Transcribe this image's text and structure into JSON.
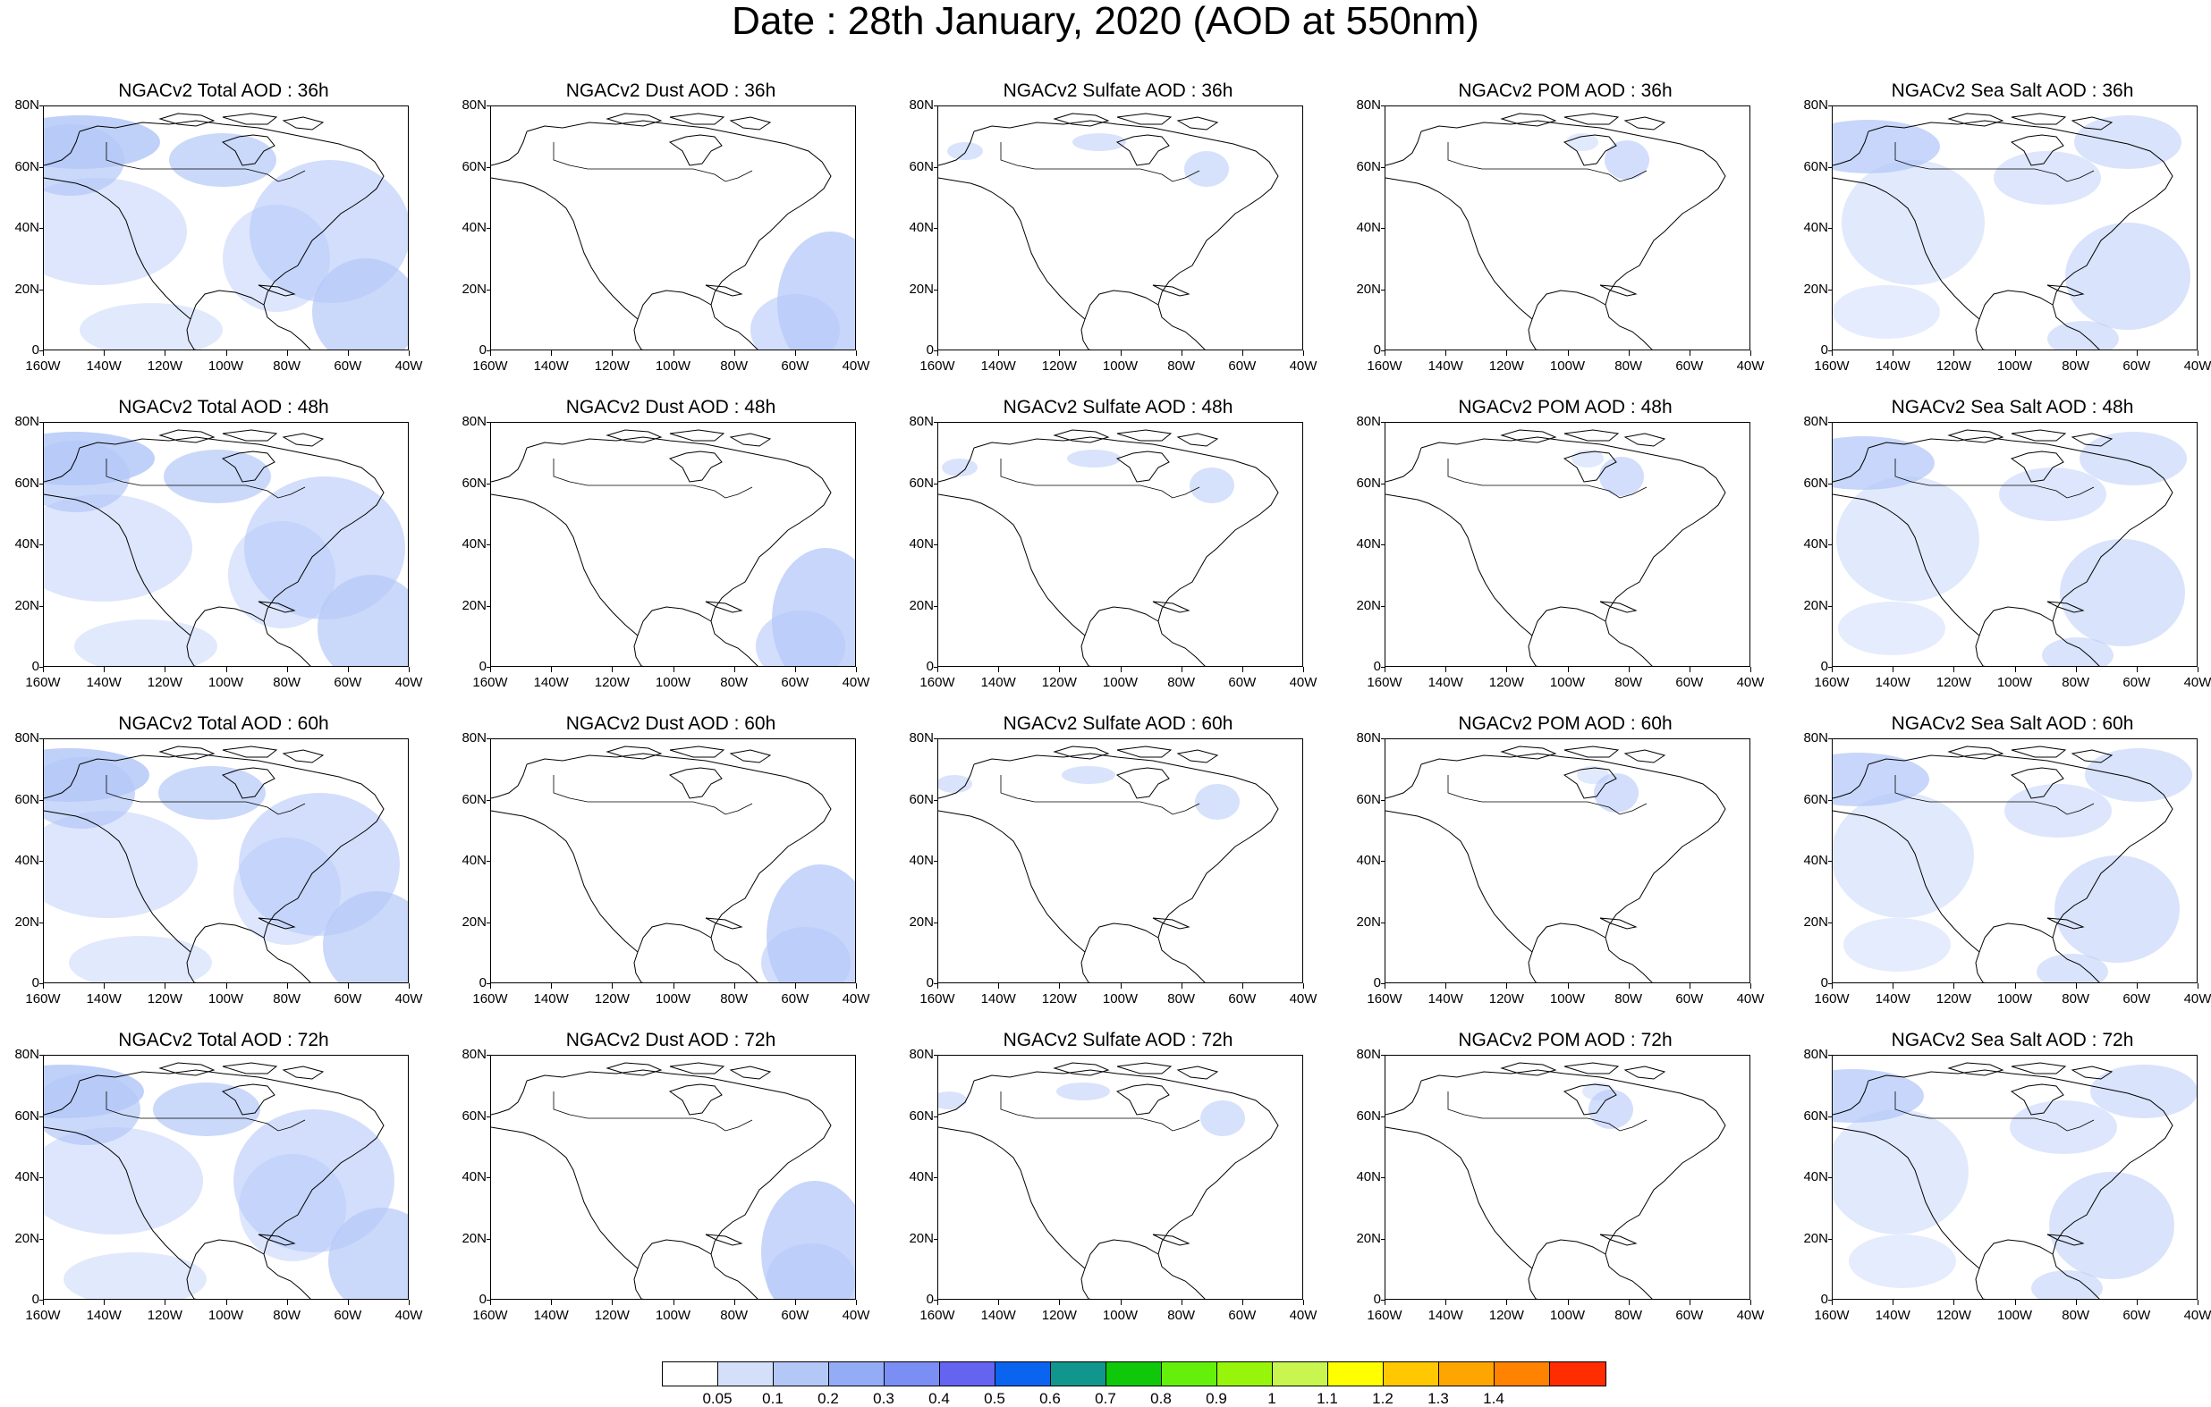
{
  "title": "Date : 28th January, 2020 (AOD at 550nm)",
  "lat_labels": [
    "80N",
    "60N",
    "40N",
    "20N",
    "0"
  ],
  "lon_labels": [
    "160W",
    "140W",
    "120W",
    "100W",
    "80W",
    "60W",
    "40W"
  ],
  "rows": [
    {
      "forecast_hour": "36h",
      "titles": [
        "NGACv2 Total AOD : 36h",
        "NGACv2 Dust AOD : 36h",
        "NGACv2 Sulfate AOD : 36h",
        "NGACv2 POM AOD : 36h",
        "NGACv2 Sea Salt AOD : 36h"
      ]
    },
    {
      "forecast_hour": "48h",
      "titles": [
        "NGACv2 Total AOD : 48h",
        "NGACv2 Dust AOD : 48h",
        "NGACv2 Sulfate AOD : 48h",
        "NGACv2 POM AOD : 48h",
        "NGACv2 Sea Salt AOD : 48h"
      ]
    },
    {
      "forecast_hour": "60h",
      "titles": [
        "NGACv2 Total AOD : 60h",
        "NGACv2 Dust AOD : 60h",
        "NGACv2 Sulfate AOD : 60h",
        "NGACv2 POM AOD : 60h",
        "NGACv2 Sea Salt AOD : 60h"
      ]
    },
    {
      "forecast_hour": "72h",
      "titles": [
        "NGACv2 Total AOD : 72h",
        "NGACv2 Dust AOD : 72h",
        "NGACv2 Sulfate AOD : 72h",
        "NGACv2 POM AOD : 72h",
        "NGACv2 Sea Salt  AOD : 72h"
      ]
    }
  ],
  "colorbar": {
    "colors": [
      "#ffffff",
      "#d4e0fa",
      "#b4c8f8",
      "#94acf6",
      "#7a8ef4",
      "#6464f0",
      "#0a64f0",
      "#10968c",
      "#10c80a",
      "#64f00a",
      "#96f50a",
      "#c8f550",
      "#ffff00",
      "#ffc800",
      "#ffa500",
      "#ff8200",
      "#ff2d00"
    ],
    "labels": [
      "0.05",
      "0.1",
      "0.2",
      "0.3",
      "0.4",
      "0.5",
      "0.6",
      "0.7",
      "0.8",
      "0.9",
      "1",
      "1.1",
      "1.2",
      "1.3",
      "1.4"
    ]
  }
}
